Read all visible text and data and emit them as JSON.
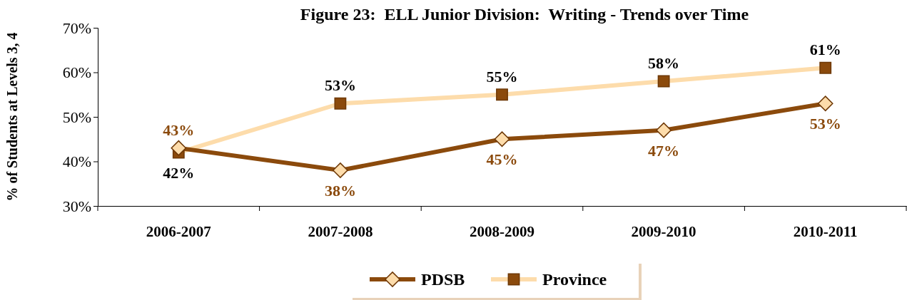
{
  "chart_data": {
    "type": "line",
    "title": "Figure 23:  ELL Junior Division:  Writing - Trends over Time",
    "ylabel": "% of Students at Levels 3, 4",
    "categories": [
      "2006-2007",
      "2007-2008",
      "2008-2009",
      "2009-2010",
      "2010-2011"
    ],
    "series": [
      {
        "name": "PDSB",
        "color": "#8b4a0c",
        "marker": "diamond",
        "values": [
          43,
          38,
          45,
          47,
          53
        ],
        "value_labels": [
          "43%",
          "38%",
          "45%",
          "47%",
          "53%"
        ]
      },
      {
        "name": "Province",
        "color": "#fddcab",
        "marker": "square",
        "values": [
          42,
          53,
          55,
          58,
          61
        ],
        "value_labels": [
          "42%",
          "53%",
          "55%",
          "58%",
          "61%"
        ]
      }
    ],
    "ylim": [
      30,
      70
    ],
    "yticks": [
      {
        "value": 30,
        "label": "30%"
      },
      {
        "value": 40,
        "label": "40%"
      },
      {
        "value": 50,
        "label": "50%"
      },
      {
        "value": 60,
        "label": "60%"
      },
      {
        "value": 70,
        "label": "70%"
      }
    ],
    "grid": false,
    "legend": "bottom"
  }
}
